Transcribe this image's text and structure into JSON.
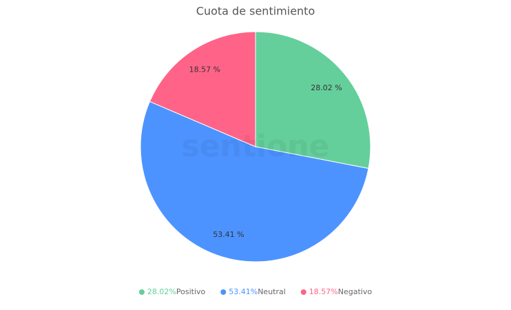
{
  "chart_data": {
    "type": "pie",
    "title": "Cuota de sentimiento",
    "categories": [
      "Positivo",
      "Neutral",
      "Negativo"
    ],
    "values": [
      28.02,
      53.41,
      18.57
    ],
    "value_labels": [
      "28.02 %",
      "53.41 %",
      "18.57 %"
    ],
    "legend_labels": [
      "28.02%",
      "53.41%",
      "18.57%"
    ],
    "colors": [
      "#64cf9a",
      "#4c93ff",
      "#ff6388"
    ],
    "watermark": "sentione"
  }
}
